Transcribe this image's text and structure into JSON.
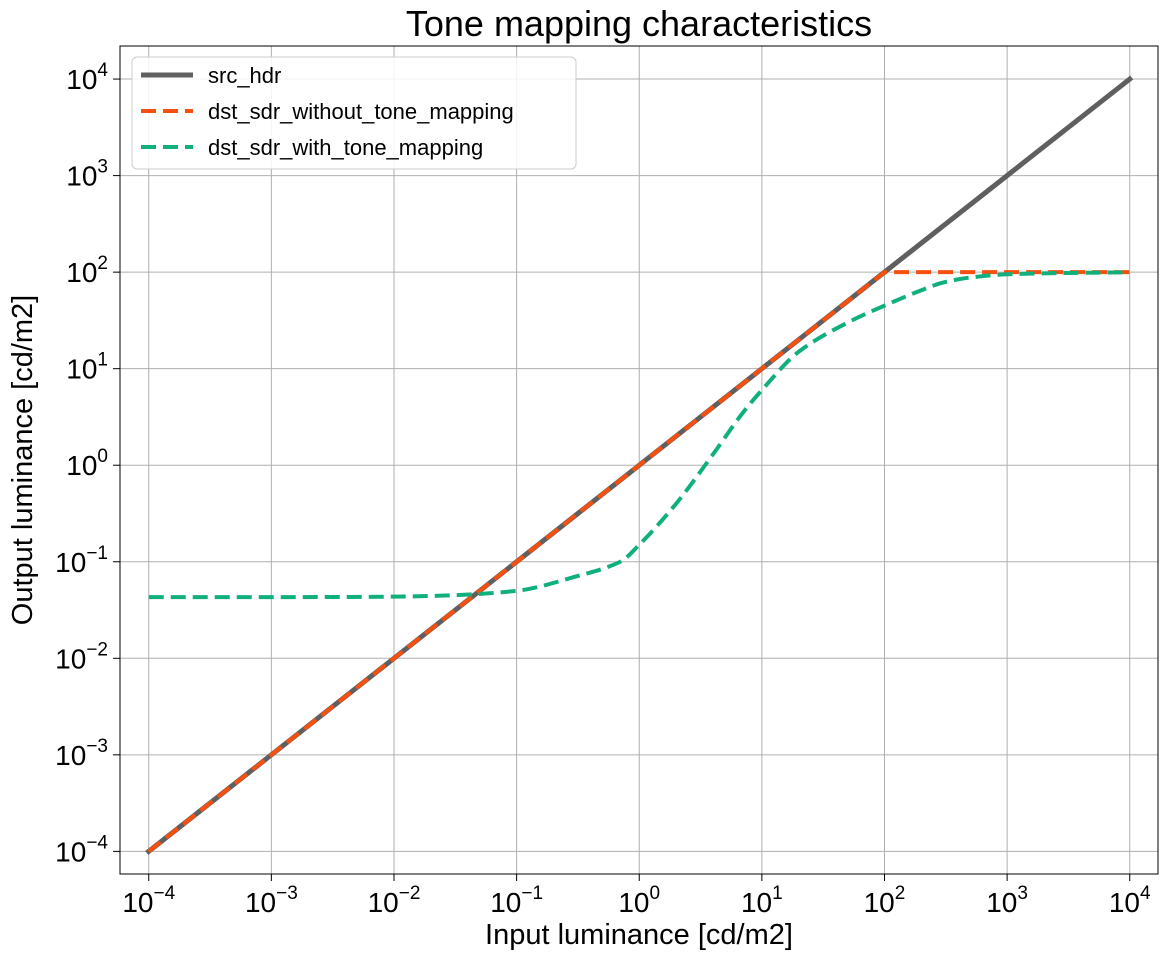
{
  "chart_data": {
    "type": "line",
    "title": "Tone mapping characteristics",
    "xlabel": "Input luminance [cd/m2]",
    "ylabel": "Output luminance [cd/m2]",
    "x_scale": "log",
    "y_scale": "log",
    "xlim": [
      5.83e-05,
      17000
    ],
    "ylim": [
      5.83e-05,
      22000
    ],
    "grid": true,
    "legend_position": "top-left",
    "x_ticks": [
      {
        "value": 0.0001,
        "base": "10",
        "exp": "−4"
      },
      {
        "value": 0.001,
        "base": "10",
        "exp": "−3"
      },
      {
        "value": 0.01,
        "base": "10",
        "exp": "−2"
      },
      {
        "value": 0.1,
        "base": "10",
        "exp": "−1"
      },
      {
        "value": 1,
        "base": "10",
        "exp": "0"
      },
      {
        "value": 10,
        "base": "10",
        "exp": "1"
      },
      {
        "value": 100,
        "base": "10",
        "exp": "2"
      },
      {
        "value": 1000,
        "base": "10",
        "exp": "3"
      },
      {
        "value": 10000,
        "base": "10",
        "exp": "4"
      }
    ],
    "y_ticks": [
      {
        "value": 0.0001,
        "base": "10",
        "exp": "−4"
      },
      {
        "value": 0.001,
        "base": "10",
        "exp": "−3"
      },
      {
        "value": 0.01,
        "base": "10",
        "exp": "−2"
      },
      {
        "value": 0.1,
        "base": "10",
        "exp": "−1"
      },
      {
        "value": 1,
        "base": "10",
        "exp": "0"
      },
      {
        "value": 10,
        "base": "10",
        "exp": "1"
      },
      {
        "value": 100,
        "base": "10",
        "exp": "2"
      },
      {
        "value": 1000,
        "base": "10",
        "exp": "3"
      },
      {
        "value": 10000,
        "base": "10",
        "exp": "4"
      }
    ],
    "series": [
      {
        "name": "src_hdr",
        "color": "#5f5f5f",
        "style": "solid",
        "x": [
          0.0001,
          0.001,
          0.01,
          0.1,
          1,
          10,
          100,
          1000,
          10000
        ],
        "y": [
          0.0001,
          0.001,
          0.01,
          0.1,
          1,
          10,
          100,
          1000,
          10000
        ]
      },
      {
        "name": "dst_sdr_without_tone_mapping",
        "color": "#f5500f",
        "style": "dashed",
        "x": [
          0.0001,
          0.001,
          0.01,
          0.1,
          1,
          10,
          100,
          1000,
          10000
        ],
        "y": [
          0.0001,
          0.001,
          0.01,
          0.1,
          1,
          10,
          100,
          100,
          100
        ]
      },
      {
        "name": "dst_sdr_with_tone_mapping",
        "color": "#10b07e",
        "style": "dashed",
        "x": [
          0.0001,
          0.001,
          0.01,
          0.03,
          0.1,
          0.3,
          0.7,
          1,
          2,
          4,
          7,
          10,
          20,
          50,
          100,
          200,
          300,
          500,
          1000,
          3000,
          10000
        ],
        "y": [
          0.043,
          0.043,
          0.0435,
          0.045,
          0.05,
          0.07,
          0.1,
          0.15,
          0.4,
          1.3,
          3.5,
          6,
          15,
          30,
          45,
          65,
          78,
          88,
          95,
          98,
          99.5
        ]
      }
    ]
  }
}
